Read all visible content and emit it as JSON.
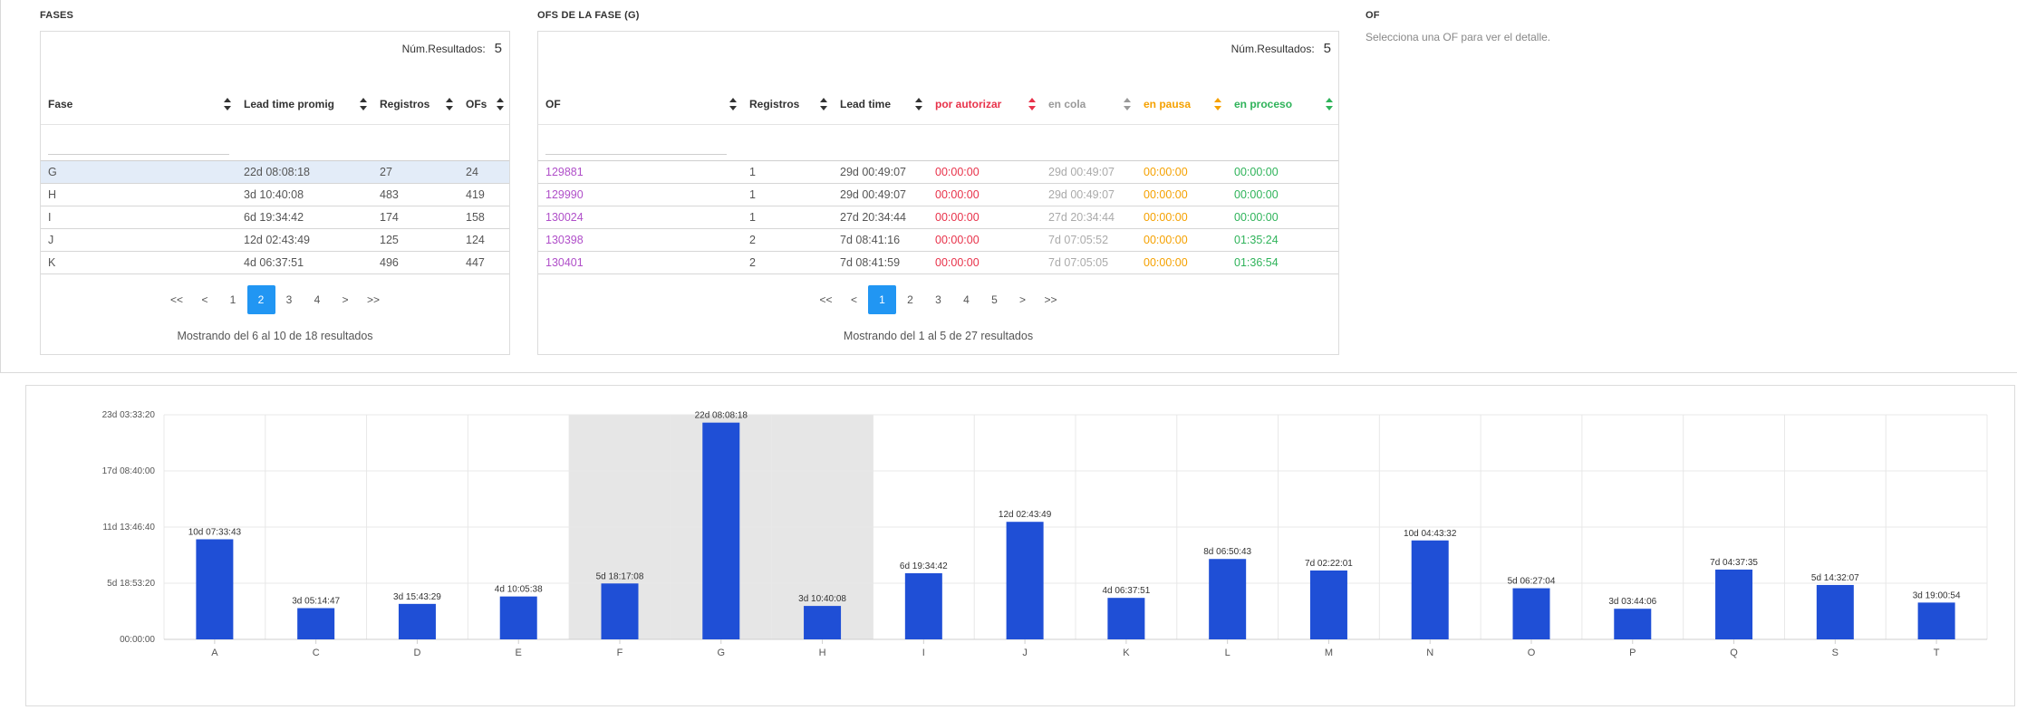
{
  "fases": {
    "title": "FASES",
    "num_label": "Núm.Resultados:",
    "num_value": "5",
    "columns": [
      "Fase",
      "Lead time promig",
      "Registros",
      "OFs"
    ],
    "rows": [
      [
        "G",
        "22d 08:08:18",
        "27",
        "24"
      ],
      [
        "H",
        "3d 10:40:08",
        "483",
        "419"
      ],
      [
        "I",
        "6d 19:34:42",
        "174",
        "158"
      ],
      [
        "J",
        "12d 02:43:49",
        "125",
        "124"
      ],
      [
        "K",
        "4d 06:37:51",
        "496",
        "447"
      ]
    ],
    "pager": [
      "<<",
      "<",
      "1",
      "2",
      "3",
      "4",
      ">",
      ">>"
    ],
    "pager_active": "2",
    "showing": "Mostrando del 6 al 10 de 18 resultados"
  },
  "ofs": {
    "title": "OFS DE LA FASE (G)",
    "num_label": "Núm.Resultados:",
    "num_value": "5",
    "columns": [
      "OF",
      "Registros",
      "Lead time",
      "por autorizar",
      "en cola",
      "en pausa",
      "en proceso"
    ],
    "column_colors": [
      "#333333",
      "#333333",
      "#333333",
      "#e8324a",
      "#999999",
      "#f5a100",
      "#2fb35a"
    ],
    "rows": [
      [
        "129881",
        "1",
        "29d 00:49:07",
        "00:00:00",
        "29d 00:49:07",
        "00:00:00",
        "00:00:00"
      ],
      [
        "129990",
        "1",
        "29d 00:49:07",
        "00:00:00",
        "29d 00:49:07",
        "00:00:00",
        "00:00:00"
      ],
      [
        "130024",
        "1",
        "27d 20:34:44",
        "00:00:00",
        "27d 20:34:44",
        "00:00:00",
        "00:00:00"
      ],
      [
        "130398",
        "2",
        "7d 08:41:16",
        "00:00:00",
        "7d 07:05:52",
        "00:00:00",
        "01:35:24"
      ],
      [
        "130401",
        "2",
        "7d 08:41:59",
        "00:00:00",
        "7d 07:05:05",
        "00:00:00",
        "01:36:54"
      ]
    ],
    "of_link_color": "#b04fc9",
    "pager": [
      "<<",
      "<",
      "1",
      "2",
      "3",
      "4",
      "5",
      ">",
      ">>"
    ],
    "pager_active": "1",
    "showing": "Mostrando del 1 al 5 de 27 resultados"
  },
  "of_detail": {
    "title": "OF",
    "message": "Selecciona una OF para ver el detalle."
  },
  "chart_data": {
    "type": "bar",
    "categories": [
      "A",
      "C",
      "D",
      "E",
      "F",
      "G",
      "H",
      "I",
      "J",
      "K",
      "L",
      "M",
      "N",
      "O",
      "P",
      "Q",
      "S",
      "T"
    ],
    "values_hours": [
      247.56,
      77.25,
      87.73,
      106.09,
      138.28,
      536.14,
      82.67,
      163.58,
      290.73,
      102.63,
      198.85,
      170.37,
      244.73,
      126.45,
      75.73,
      172.63,
      134.53,
      91.02
    ],
    "data_labels": [
      "10d 07:33:43",
      "3d 05:14:47",
      "3d 15:43:29",
      "4d 10:05:38",
      "5d 18:17:08",
      "22d 08:08:18",
      "3d 10:40:08",
      "6d 19:34:42",
      "12d 02:43:49",
      "4d 06:37:51",
      "8d 06:50:43",
      "7d 02:22:01",
      "10d 04:43:32",
      "5d 06:27:04",
      "3d 03:44:06",
      "7d 04:37:35",
      "5d 14:32:07",
      "3d 19:00:54"
    ],
    "y_ticks_hours": [
      0,
      138.89,
      277.78,
      416.67,
      555.56
    ],
    "y_tick_labels": [
      "00:00:00",
      "5d 18:53:20",
      "11d 13:46:40",
      "17d 08:40:00",
      "23d 03:33:20"
    ],
    "ylim": [
      0,
      555.56
    ],
    "highlight_categories": [
      "F",
      "G",
      "H"
    ],
    "grid": true,
    "bar_color": "#1f4fd6",
    "highlight_color": "#e6e6e6"
  }
}
